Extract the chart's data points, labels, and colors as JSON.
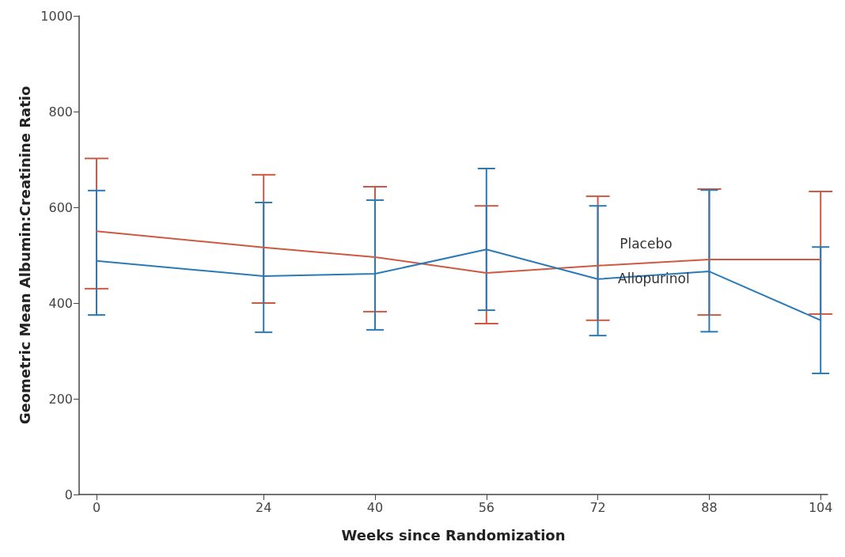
{
  "chart_data": {
    "type": "line",
    "xlabel": "Weeks since Randomization",
    "ylabel": "Geometric Mean Albumin:Creatinine Ratio",
    "x": [
      0,
      24,
      40,
      56,
      72,
      88,
      104
    ],
    "series": [
      {
        "name": "Placebo",
        "color": "#cc5a42",
        "values": [
          550,
          516,
          496,
          463,
          478,
          491,
          491
        ],
        "errors": [
          [
            430,
            702
          ],
          [
            400,
            668
          ],
          [
            382,
            643
          ],
          [
            357,
            603
          ],
          [
            364,
            623
          ],
          [
            375,
            638
          ],
          [
            377,
            633
          ]
        ]
      },
      {
        "name": "Allopurinol",
        "color": "#2a7ab8",
        "values": [
          488,
          456,
          461,
          512,
          450,
          466,
          364
        ],
        "errors": [
          [
            375,
            635
          ],
          [
            339,
            610
          ],
          [
            344,
            615
          ],
          [
            385,
            681
          ],
          [
            332,
            603
          ],
          [
            340,
            636
          ],
          [
            253,
            517
          ]
        ]
      }
    ],
    "xlim": [
      -2.5,
      105
    ],
    "xticks": [
      0,
      24,
      40,
      56,
      72,
      88,
      104
    ],
    "ylim": [
      0,
      1000
    ],
    "yticks": [
      0,
      200,
      400,
      600,
      800,
      1000
    ],
    "grid": false,
    "legend": false,
    "marker": "none",
    "line_style": "solid"
  }
}
